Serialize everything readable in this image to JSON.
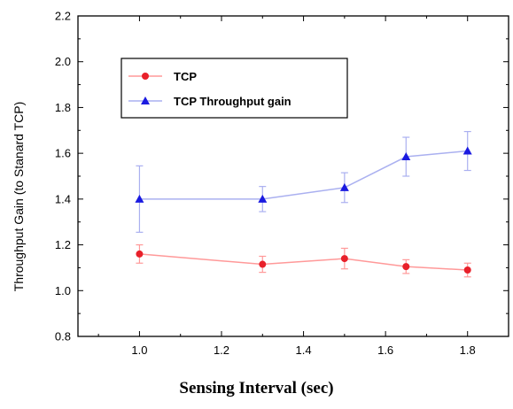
{
  "chart_data": {
    "type": "line",
    "xlabel": "Sensing Interval (sec)",
    "ylabel": "Throughput Gain (to Stanard TCP)",
    "xlim": [
      0.85,
      1.9
    ],
    "ylim": [
      0.8,
      2.2
    ],
    "x_ticks": [
      "1.0",
      "1.2",
      "1.4",
      "1.6",
      "1.8"
    ],
    "y_ticks": [
      "0.8",
      "1.0",
      "1.2",
      "1.4",
      "1.6",
      "1.8",
      "2.0",
      "2.2"
    ],
    "grid": false,
    "legend_position": "top-left",
    "series": [
      {
        "name": "TCP",
        "color": "#ff9999",
        "marker_color": "#e8202a",
        "marker": "circle",
        "x": [
          1.0,
          1.3,
          1.5,
          1.65,
          1.8
        ],
        "y": [
          1.16,
          1.115,
          1.14,
          1.105,
          1.09
        ],
        "err": [
          0.04,
          0.035,
          0.045,
          0.03,
          0.03
        ]
      },
      {
        "name": "TCP Throughput gain",
        "color": "#aab0f0",
        "marker_color": "#1a1ae0",
        "marker": "triangle",
        "x": [
          1.0,
          1.3,
          1.5,
          1.65,
          1.8
        ],
        "y": [
          1.4,
          1.4,
          1.45,
          1.585,
          1.61
        ],
        "err": [
          0.145,
          0.055,
          0.065,
          0.085,
          0.085
        ]
      }
    ]
  }
}
